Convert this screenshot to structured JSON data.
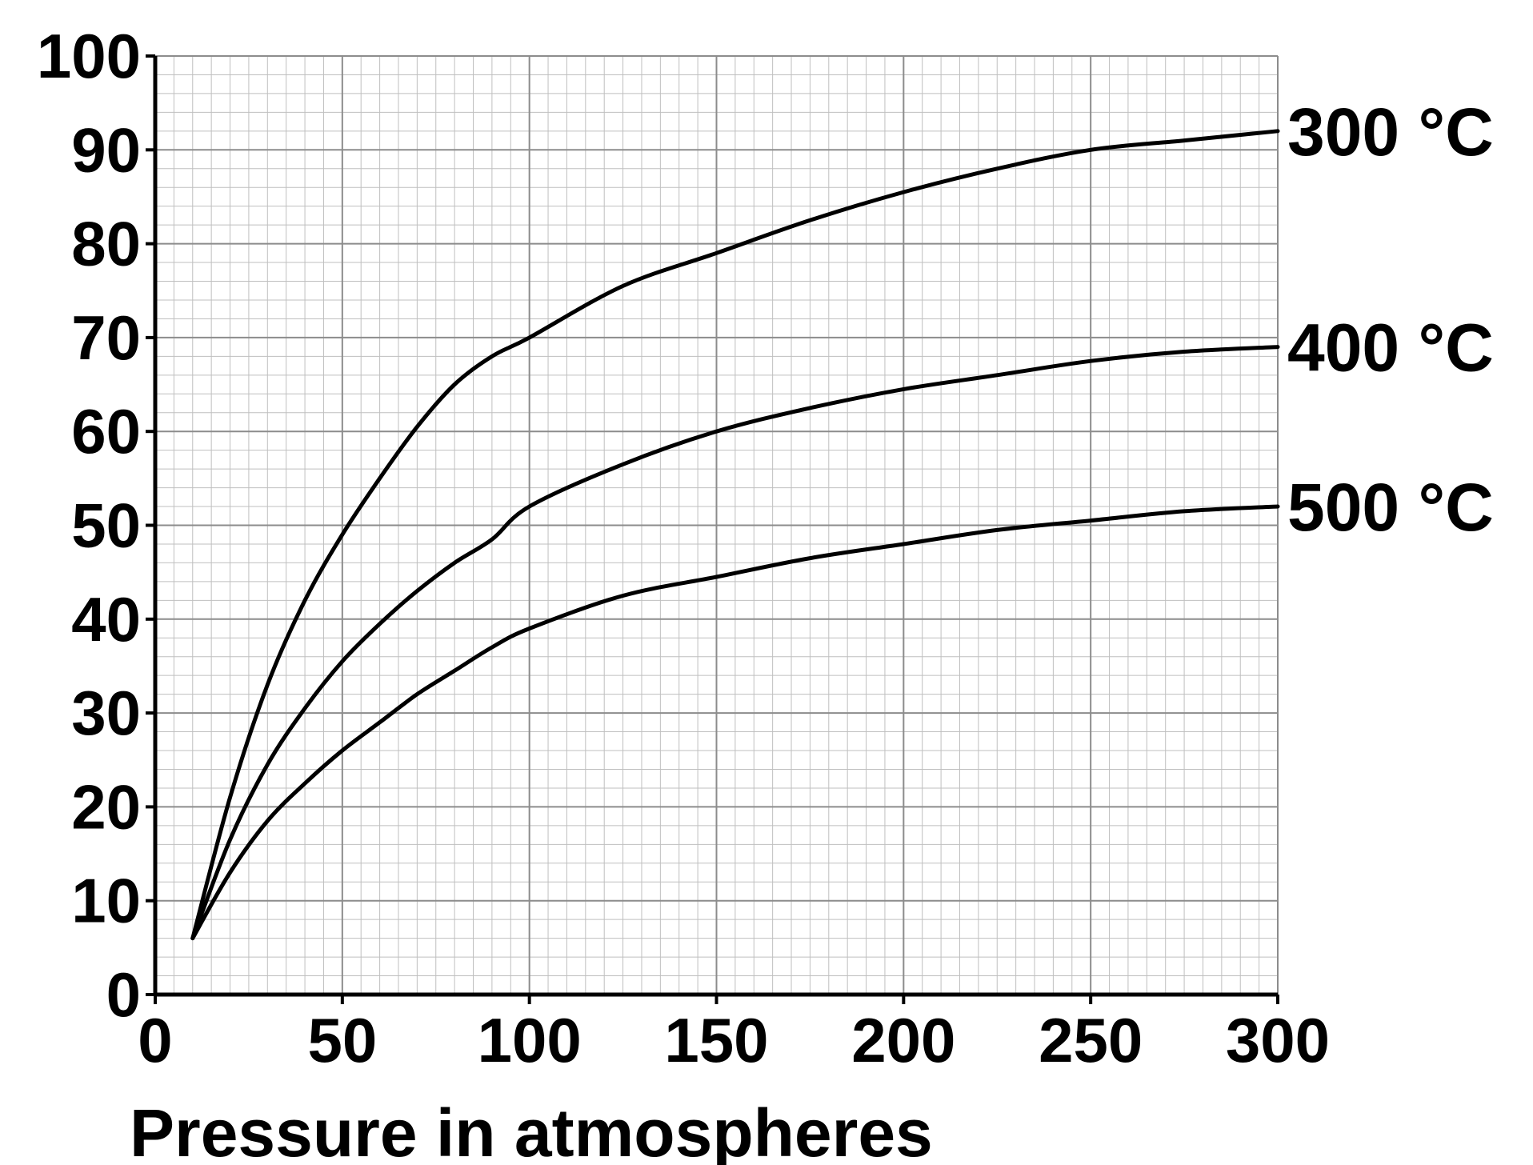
{
  "chart_data": {
    "type": "line",
    "title": "",
    "xlabel": "Pressure in atmospheres",
    "ylabel": "",
    "xlim": [
      0,
      300
    ],
    "ylim": [
      0,
      100
    ],
    "xticks": [
      "0",
      "50",
      "100",
      "150",
      "200",
      "250",
      "300"
    ],
    "yticks": [
      "0",
      "10",
      "20",
      "30",
      "40",
      "50",
      "60",
      "70",
      "80",
      "90",
      "100"
    ],
    "grid": true,
    "series": [
      {
        "name": "300 °C",
        "x": [
          10,
          20,
          30,
          40,
          50,
          60,
          70,
          80,
          90,
          100,
          125,
          150,
          175,
          200,
          225,
          250,
          275,
          300
        ],
        "y": [
          6,
          21,
          33,
          42,
          49,
          55,
          60.5,
          65,
          68,
          70,
          75.5,
          79,
          82.5,
          85.5,
          88,
          90,
          91,
          92
        ]
      },
      {
        "name": "400 °C",
        "x": [
          10,
          20,
          30,
          40,
          50,
          60,
          70,
          80,
          90,
          100,
          125,
          150,
          175,
          200,
          225,
          250,
          275,
          300
        ],
        "y": [
          6,
          16.5,
          24.5,
          30.5,
          35.5,
          39.5,
          43,
          46,
          48.5,
          52,
          56.5,
          60,
          62.5,
          64.5,
          66,
          67.5,
          68.5,
          69
        ]
      },
      {
        "name": "500 °C",
        "x": [
          10,
          20,
          30,
          40,
          50,
          60,
          70,
          80,
          90,
          100,
          125,
          150,
          175,
          200,
          225,
          250,
          275,
          300
        ],
        "y": [
          6,
          13,
          18.5,
          22.5,
          26,
          29,
          32,
          34.5,
          37,
          39,
          42.5,
          44.5,
          46.5,
          48,
          49.5,
          50.5,
          51.5,
          52
        ]
      }
    ]
  }
}
